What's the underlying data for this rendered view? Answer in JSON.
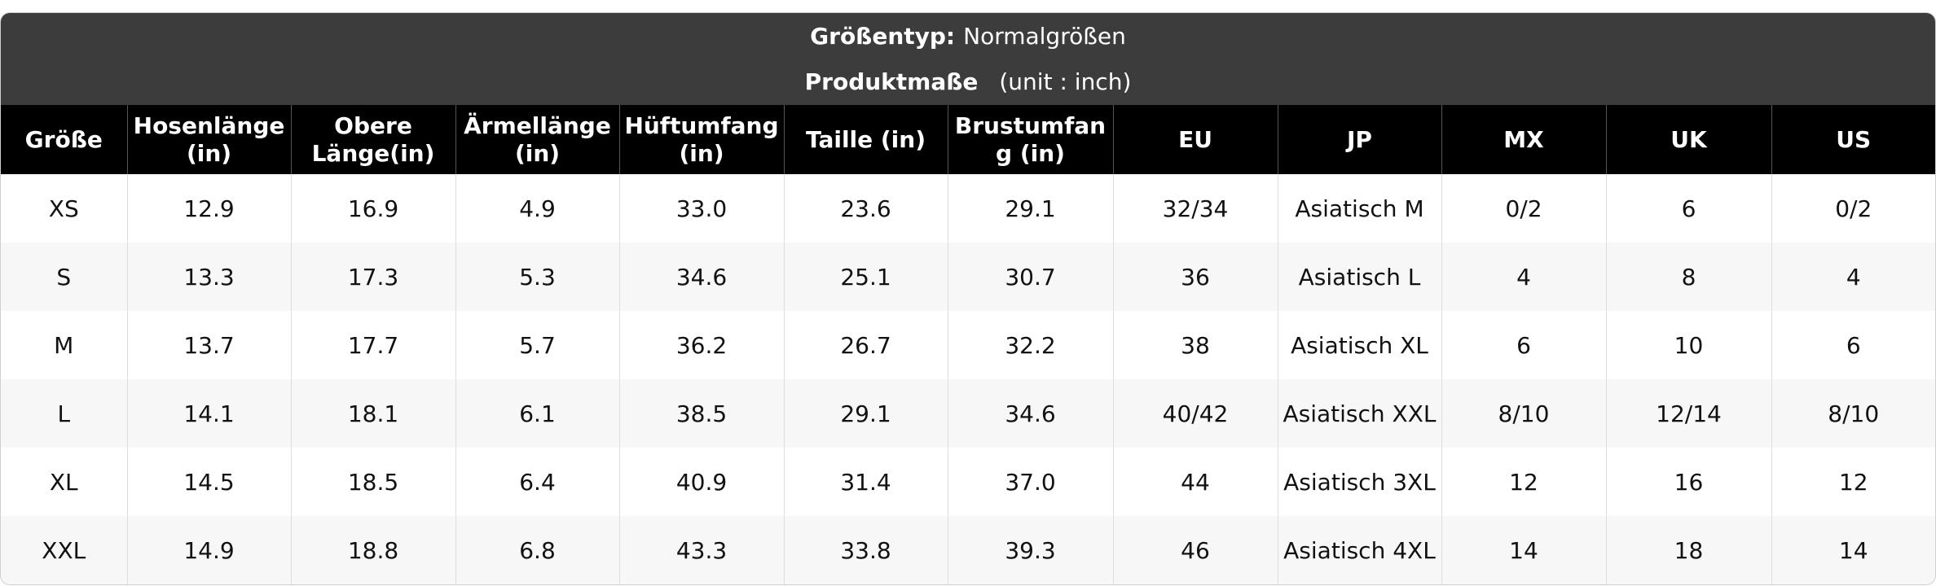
{
  "header": {
    "size_type_label": "Größentyp:",
    "size_type_value": "Normalgrößen",
    "measure_label": "Produktmaße",
    "unit": "(unit : inch)"
  },
  "table": {
    "columns": [
      "Größe",
      "Hosenlänge (in)",
      "Obere Länge(in)",
      "Ärmellänge(in)",
      "Hüftumfang (in)",
      "Taille (in)",
      "Brustumfang (in)",
      "EU",
      "JP",
      "MX",
      "UK",
      "US"
    ],
    "rows": [
      [
        "XS",
        "12.9",
        "16.9",
        "4.9",
        "33.0",
        "23.6",
        "29.1",
        "32/34",
        "Asiatisch M",
        "0/2",
        "6",
        "0/2"
      ],
      [
        "S",
        "13.3",
        "17.3",
        "5.3",
        "34.6",
        "25.1",
        "30.7",
        "36",
        "Asiatisch L",
        "4",
        "8",
        "4"
      ],
      [
        "M",
        "13.7",
        "17.7",
        "5.7",
        "36.2",
        "26.7",
        "32.2",
        "38",
        "Asiatisch XL",
        "6",
        "10",
        "6"
      ],
      [
        "L",
        "14.1",
        "18.1",
        "6.1",
        "38.5",
        "29.1",
        "34.6",
        "40/42",
        "Asiatisch XXL",
        "8/10",
        "12/14",
        "8/10"
      ],
      [
        "XL",
        "14.5",
        "18.5",
        "6.4",
        "40.9",
        "31.4",
        "37.0",
        "44",
        "Asiatisch 3XL",
        "12",
        "16",
        "12"
      ],
      [
        "XXL",
        "14.9",
        "18.8",
        "6.8",
        "43.3",
        "33.8",
        "39.3",
        "46",
        "Asiatisch 4XL",
        "14",
        "18",
        "14"
      ]
    ]
  }
}
